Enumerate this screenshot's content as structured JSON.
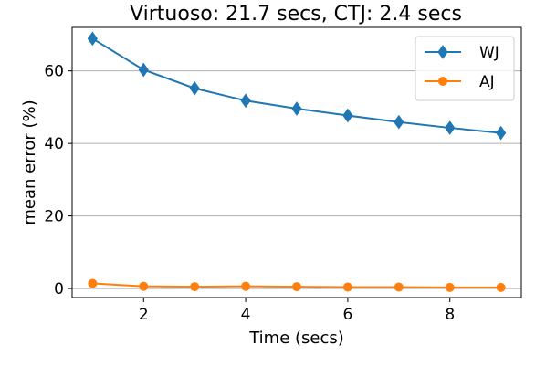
{
  "chart_data": {
    "type": "line",
    "title": "Virtuoso: 21.7 secs, CTJ: 2.4 secs",
    "xlabel": "Time (secs)",
    "ylabel": "mean error (%)",
    "x": [
      1,
      2,
      3,
      4,
      5,
      6,
      7,
      8,
      9
    ],
    "xlim": [
      0.6,
      9.4
    ],
    "ylim": [
      -2.5,
      72
    ],
    "xticks": [
      2,
      4,
      6,
      8
    ],
    "yticks": [
      0,
      20,
      40,
      60
    ],
    "grid": "y",
    "legend_position": "top-right",
    "series": [
      {
        "name": "WJ",
        "color": "#1f77b4",
        "marker": "diamond",
        "values": [
          68.9,
          60.3,
          55.2,
          51.8,
          49.6,
          47.7,
          45.9,
          44.3,
          42.9
        ]
      },
      {
        "name": "AJ",
        "color": "#ff7f0e",
        "marker": "circle",
        "values": [
          1.4,
          0.6,
          0.5,
          0.6,
          0.5,
          0.4,
          0.4,
          0.3,
          0.3
        ]
      }
    ]
  }
}
